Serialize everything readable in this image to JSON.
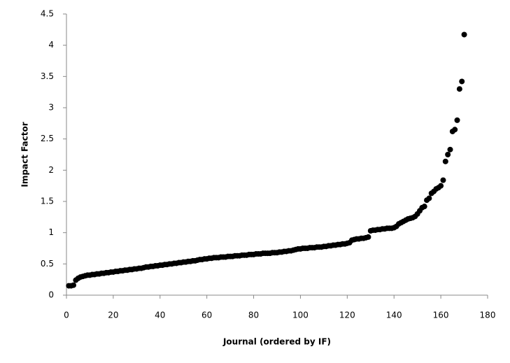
{
  "chart_data": {
    "type": "scatter",
    "xlabel": "Journal (ordered by IF)",
    "ylabel": "Impact Factor",
    "color": "#000000",
    "x": [
      1,
      2,
      3,
      4,
      5,
      6,
      7,
      8,
      9,
      10,
      11,
      12,
      13,
      14,
      15,
      16,
      17,
      18,
      19,
      20,
      21,
      22,
      23,
      24,
      25,
      26,
      27,
      28,
      29,
      30,
      31,
      32,
      33,
      34,
      35,
      36,
      37,
      38,
      39,
      40,
      41,
      42,
      43,
      44,
      45,
      46,
      47,
      48,
      49,
      50,
      51,
      52,
      53,
      54,
      55,
      56,
      57,
      58,
      59,
      60,
      61,
      62,
      63,
      64,
      65,
      66,
      67,
      68,
      69,
      70,
      71,
      72,
      73,
      74,
      75,
      76,
      77,
      78,
      79,
      80,
      81,
      82,
      83,
      84,
      85,
      86,
      87,
      88,
      89,
      90,
      91,
      92,
      93,
      94,
      95,
      96,
      97,
      98,
      99,
      100,
      101,
      102,
      103,
      104,
      105,
      106,
      107,
      108,
      109,
      110,
      111,
      112,
      113,
      114,
      115,
      116,
      117,
      118,
      119,
      120,
      121,
      122,
      123,
      124,
      125,
      126,
      127,
      128,
      129,
      130,
      131,
      132,
      133,
      134,
      135,
      136,
      137,
      138,
      139,
      140,
      141,
      142,
      143,
      144,
      145,
      146,
      147,
      148,
      149,
      150,
      151,
      152,
      153,
      154,
      155,
      156,
      157,
      158,
      159,
      160,
      161,
      162,
      163,
      164,
      165,
      166,
      167,
      168,
      169,
      170
    ],
    "values": [
      0.15,
      0.15,
      0.16,
      0.24,
      0.27,
      0.29,
      0.3,
      0.31,
      0.32,
      0.32,
      0.33,
      0.33,
      0.34,
      0.34,
      0.35,
      0.35,
      0.36,
      0.36,
      0.37,
      0.37,
      0.38,
      0.38,
      0.39,
      0.39,
      0.4,
      0.4,
      0.41,
      0.41,
      0.42,
      0.42,
      0.43,
      0.43,
      0.44,
      0.45,
      0.45,
      0.46,
      0.46,
      0.47,
      0.47,
      0.48,
      0.48,
      0.49,
      0.49,
      0.5,
      0.5,
      0.51,
      0.51,
      0.52,
      0.52,
      0.53,
      0.53,
      0.54,
      0.54,
      0.55,
      0.55,
      0.56,
      0.57,
      0.57,
      0.58,
      0.58,
      0.59,
      0.59,
      0.6,
      0.6,
      0.6,
      0.61,
      0.61,
      0.61,
      0.62,
      0.62,
      0.62,
      0.63,
      0.63,
      0.63,
      0.64,
      0.64,
      0.64,
      0.65,
      0.65,
      0.65,
      0.66,
      0.66,
      0.66,
      0.67,
      0.67,
      0.67,
      0.67,
      0.68,
      0.68,
      0.68,
      0.69,
      0.69,
      0.7,
      0.7,
      0.71,
      0.71,
      0.72,
      0.73,
      0.74,
      0.74,
      0.75,
      0.75,
      0.75,
      0.76,
      0.76,
      0.76,
      0.77,
      0.77,
      0.77,
      0.78,
      0.78,
      0.79,
      0.79,
      0.8,
      0.8,
      0.81,
      0.81,
      0.82,
      0.82,
      0.83,
      0.84,
      0.88,
      0.89,
      0.9,
      0.9,
      0.91,
      0.91,
      0.92,
      0.93,
      1.03,
      1.04,
      1.04,
      1.05,
      1.05,
      1.06,
      1.06,
      1.07,
      1.07,
      1.07,
      1.08,
      1.1,
      1.14,
      1.16,
      1.18,
      1.2,
      1.22,
      1.23,
      1.24,
      1.26,
      1.3,
      1.35,
      1.4,
      1.42,
      1.52,
      1.55,
      1.63,
      1.66,
      1.7,
      1.72,
      1.75,
      1.84,
      2.14,
      2.25,
      2.33,
      2.62,
      2.65,
      2.8,
      3.3,
      3.42,
      4.17
    ],
    "xlim": [
      0,
      180
    ],
    "xticks": [
      0,
      20,
      40,
      60,
      80,
      100,
      120,
      140,
      160,
      180
    ],
    "ylim": [
      0,
      4.5
    ],
    "yticks": [
      0,
      0.5,
      1,
      1.5,
      2,
      2.5,
      3,
      3.5,
      4,
      4.5
    ],
    "grid": false
  }
}
